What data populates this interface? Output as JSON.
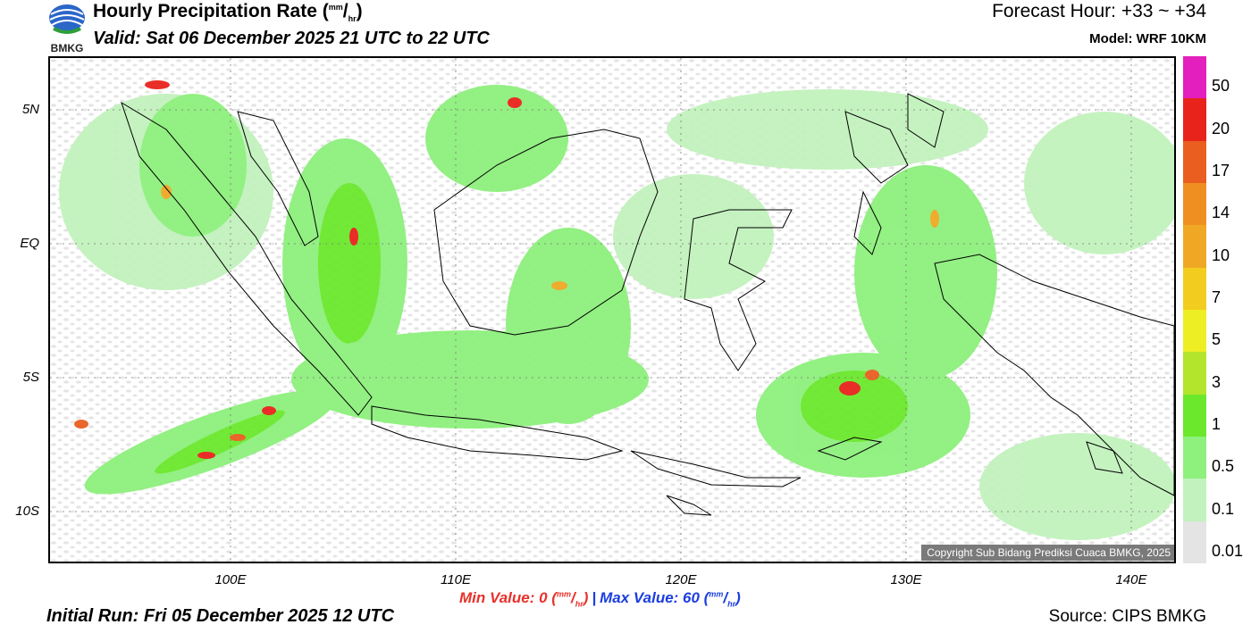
{
  "header": {
    "title_main": "Hourly Precipitation Rate (",
    "title_unit_num": "mm",
    "title_unit_den": "hr",
    "title_end": ")",
    "valid": "Valid: Sat 06 December 2025 21 UTC to 22 UTC",
    "forecast_hour": "Forecast Hour: +33 ~ +34",
    "model": "Model: WRF 10KM",
    "logo_text": "BMKG"
  },
  "map": {
    "lat_labels": [
      "5N",
      "EQ",
      "5S",
      "10S"
    ],
    "lon_labels": [
      "100E",
      "110E",
      "120E",
      "130E",
      "140E"
    ],
    "copyright": "Copyright Sub Bidang Prediksi Cuaca BMKG, 2025"
  },
  "legend": {
    "labels": [
      "50",
      "20",
      "17",
      "14",
      "10",
      "7",
      "5",
      "3",
      "1",
      "0.5",
      "0.1",
      "0.01"
    ],
    "colors": [
      "#e31fbd",
      "#e8231c",
      "#ea5e1f",
      "#ef8f22",
      "#f0a824",
      "#f2cd1f",
      "#eeee25",
      "#b3e52d",
      "#6be82c",
      "#8ef07d",
      "#c2f2bd",
      "#e4e4e4"
    ]
  },
  "footer": {
    "min_label": "Min Value:   0 (",
    "max_label": "Max Value:  60 (",
    "unit_num": "mm",
    "unit_den": "hr",
    "unit_end": ")",
    "separator": "|",
    "initial_run": "Initial Run: Fri 05 December 2025 12 UTC",
    "source": "Source: CIPS BMKG"
  }
}
